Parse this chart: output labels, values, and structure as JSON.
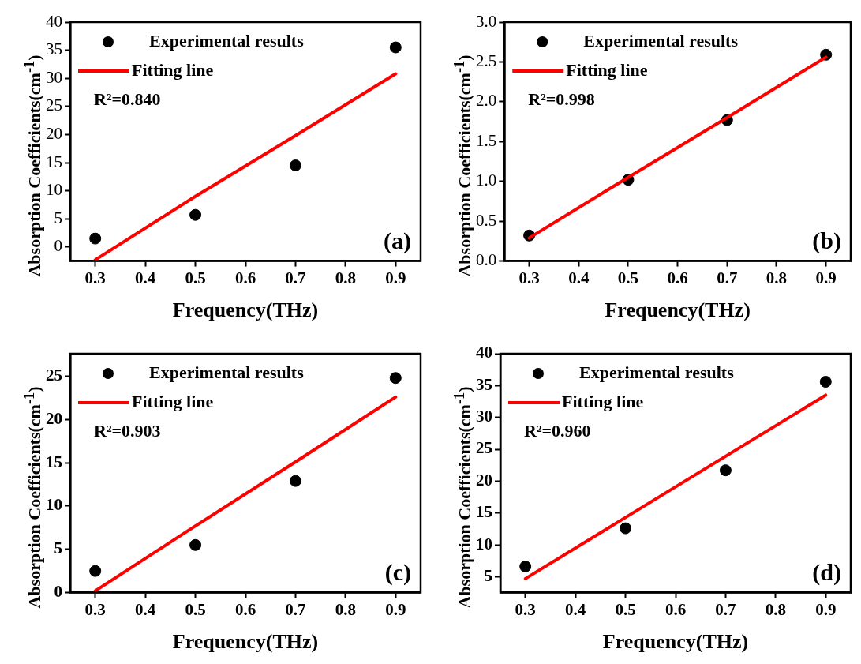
{
  "chart_data": [
    {
      "type": "scatter",
      "x": [
        0.3,
        0.5,
        0.7,
        0.9
      ],
      "xlabel": "Frequency(THz)",
      "ylabel": "Absorption Coefficients(cm$^{-1}$)",
      "xlim": [
        0.25,
        0.95
      ],
      "xticks": [
        0.3,
        0.4,
        0.5,
        0.6,
        0.7,
        0.8,
        0.9
      ],
      "ylim": [
        -2.5,
        40
      ],
      "yticks": [
        0,
        5,
        10,
        15,
        20,
        25,
        30,
        35,
        40
      ],
      "legend": "top left",
      "marker": "circle",
      "annotations": [
        "R²=0.840",
        "(a)"
      ],
      "series": [
        {
          "name": "Experimental results",
          "color": "#000000",
          "values": [
            1.5,
            5.7,
            14.5,
            35.5
          ]
        },
        {
          "name": "Fitting line",
          "type": "line",
          "color": "#ff0000",
          "values": [
            -2.3,
            9.0,
            19.8,
            30.8
          ],
          "marker": "none"
        }
      ]
    },
    {
      "type": "scatter",
      "x": [
        0.3,
        0.5,
        0.7,
        0.9
      ],
      "xlabel": "Frequency(THz)",
      "ylabel": "Absorption Coefficients(cm$^{-1}$)",
      "xlim": [
        0.25,
        0.95
      ],
      "xticks": [
        0.3,
        0.4,
        0.5,
        0.6,
        0.7,
        0.8,
        0.9
      ],
      "ylim": [
        0,
        3
      ],
      "yticks": [
        {
          "value": 0,
          "label": "0.0"
        },
        0.5,
        {
          "value": 1,
          "label": "1.0"
        },
        1.5,
        {
          "value": 2,
          "label": "2.0"
        },
        2.5,
        {
          "value": 3,
          "label": "3.0"
        }
      ],
      "legend": "top left",
      "marker": "circle",
      "annotations": [
        "R²=0.998",
        "(b)"
      ],
      "series": [
        {
          "name": "Experimental results",
          "color": "#000000",
          "values": [
            0.32,
            1.02,
            1.77,
            2.59
          ]
        },
        {
          "name": "Fitting line",
          "type": "line",
          "color": "#ff0000",
          "values": [
            0.29,
            1.05,
            1.8,
            2.56
          ],
          "marker": "none"
        }
      ]
    },
    {
      "type": "scatter",
      "x": [
        0.3,
        0.5,
        0.7,
        0.9
      ],
      "xlabel": "Frequency(THz)",
      "ylabel": "Absorption Coefficients(cm$^{-1}$)",
      "xlim": [
        0.25,
        0.95
      ],
      "xticks": [
        0.3,
        0.4,
        0.5,
        0.6,
        0.7,
        0.8,
        0.9
      ],
      "ylim": [
        0,
        27.6
      ],
      "yticks": [
        0,
        5,
        10,
        15,
        20,
        25
      ],
      "legend": "top left",
      "marker": "circle",
      "annotations": [
        "R²=0.903",
        "(c)"
      ],
      "series": [
        {
          "name": "Experimental results",
          "color": "#000000",
          "values": [
            2.5,
            5.5,
            12.9,
            24.8
          ]
        },
        {
          "name": "Fitting line",
          "type": "line",
          "color": "#ff0000",
          "values": [
            0.2,
            7.7,
            15.1,
            22.6
          ],
          "marker": "none"
        }
      ]
    },
    {
      "type": "scatter",
      "x": [
        0.3,
        0.5,
        0.7,
        0.9
      ],
      "xlabel": "Frequency(THz)",
      "ylabel": "Absorption Coefficients(cm$^{-1}$)",
      "xlim": [
        0.25,
        0.95
      ],
      "xticks": [
        0.3,
        0.4,
        0.5,
        0.6,
        0.7,
        0.8,
        0.9
      ],
      "ylim": [
        2.5,
        40
      ],
      "yticks": [
        5,
        10,
        15,
        20,
        25,
        30,
        35,
        40
      ],
      "legend": "top left",
      "marker": "circle",
      "annotations": [
        "R²=0.960",
        "(d)"
      ],
      "series": [
        {
          "name": "Experimental results",
          "color": "#000000",
          "values": [
            6.6,
            12.6,
            21.7,
            35.6
          ]
        },
        {
          "name": "Fitting line",
          "type": "line",
          "color": "#ff0000",
          "values": [
            4.7,
            14.3,
            23.9,
            33.5
          ],
          "marker": "none"
        }
      ]
    }
  ]
}
